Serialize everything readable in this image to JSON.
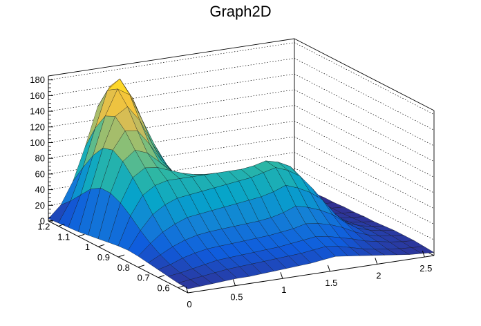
{
  "chart_data": {
    "type": "surface",
    "title": "Graph2D",
    "xlabel": "",
    "ylabel": "",
    "zlabel": "",
    "xlim": [
      0,
      2.6
    ],
    "ylim": [
      0.55,
      1.25
    ],
    "zlim": [
      0,
      185
    ],
    "x_ticks": [
      0,
      0.5,
      1,
      1.5,
      2,
      2.5
    ],
    "x_tick_labels": [
      "0",
      "0.5",
      "1",
      "1.5",
      "2",
      "2.5"
    ],
    "y_ticks": [
      0.6,
      0.7,
      0.8,
      0.9,
      1.0,
      1.1,
      1.2
    ],
    "y_tick_labels": [
      "0.6",
      "0.7",
      "0.8",
      "0.9",
      "1",
      "1.1",
      "1.2"
    ],
    "z_ticks": [
      0,
      20,
      40,
      60,
      80,
      100,
      120,
      140,
      160,
      180
    ],
    "z_tick_labels": [
      "0",
      "20",
      "40",
      "60",
      "80",
      "100",
      "120",
      "140",
      "160",
      "180"
    ],
    "grid": true,
    "colormap": [
      "#352a87",
      "#0f5cdd",
      "#1481d6",
      "#06a4ca",
      "#2eb7a4",
      "#87bf77",
      "#d1bb59",
      "#fec832",
      "#f9fb0e"
    ],
    "surface_x": [
      0.0,
      0.13,
      0.26,
      0.39,
      0.52,
      0.65,
      0.78,
      0.91,
      1.04,
      1.17,
      1.3,
      1.43,
      1.56,
      1.69,
      1.82,
      1.95,
      2.08,
      2.21,
      2.34,
      2.47,
      2.6
    ],
    "surface_y": [
      0.55,
      0.6,
      0.65,
      0.7,
      0.75,
      0.8,
      0.85,
      0.9,
      0.95,
      1.0,
      1.05,
      1.1,
      1.15,
      1.2,
      1.25
    ],
    "surface_z": [
      [
        5,
        6,
        7,
        8,
        9,
        9,
        10,
        11,
        12,
        13,
        14,
        16,
        18,
        16,
        14,
        12,
        10,
        8,
        6,
        5,
        4
      ],
      [
        6,
        8,
        10,
        12,
        14,
        15,
        16,
        17,
        18,
        19,
        20,
        22,
        24,
        22,
        18,
        14,
        11,
        9,
        7,
        6,
        5
      ],
      [
        8,
        10,
        13,
        16,
        19,
        20,
        21,
        22,
        23,
        24,
        26,
        28,
        30,
        28,
        24,
        20,
        15,
        12,
        9,
        7,
        6
      ],
      [
        10,
        14,
        20,
        24,
        27,
        28,
        29,
        30,
        31,
        32,
        34,
        36,
        40,
        38,
        34,
        28,
        20,
        14,
        10,
        8,
        6
      ],
      [
        12,
        20,
        28,
        34,
        38,
        40,
        41,
        42,
        43,
        44,
        46,
        50,
        56,
        52,
        46,
        38,
        26,
        16,
        11,
        8,
        6
      ],
      [
        14,
        28,
        40,
        48,
        54,
        56,
        58,
        60,
        62,
        64,
        66,
        70,
        76,
        70,
        62,
        50,
        30,
        16,
        10,
        7,
        5
      ],
      [
        15,
        38,
        56,
        66,
        72,
        74,
        76,
        78,
        80,
        82,
        84,
        88,
        92,
        86,
        76,
        58,
        30,
        14,
        8,
        6,
        4
      ],
      [
        14,
        50,
        74,
        84,
        88,
        88,
        88,
        88,
        88,
        88,
        88,
        90,
        94,
        90,
        82,
        62,
        28,
        12,
        7,
        5,
        4
      ],
      [
        12,
        60,
        90,
        100,
        98,
        92,
        86,
        82,
        80,
        78,
        76,
        76,
        80,
        84,
        80,
        64,
        26,
        10,
        6,
        4,
        3
      ],
      [
        10,
        66,
        104,
        116,
        110,
        96,
        82,
        72,
        66,
        62,
        58,
        56,
        60,
        70,
        74,
        64,
        24,
        8,
        5,
        4,
        3
      ],
      [
        8,
        66,
        112,
        134,
        132,
        112,
        88,
        70,
        58,
        50,
        44,
        40,
        42,
        54,
        62,
        58,
        22,
        7,
        4,
        3,
        2
      ],
      [
        6,
        58,
        108,
        146,
        156,
        136,
        104,
        78,
        58,
        44,
        34,
        28,
        28,
        36,
        46,
        46,
        18,
        6,
        3,
        2,
        2
      ],
      [
        5,
        44,
        92,
        140,
        172,
        162,
        128,
        94,
        66,
        44,
        28,
        18,
        14,
        18,
        26,
        28,
        12,
        4,
        2,
        2,
        1
      ],
      [
        4,
        30,
        70,
        118,
        164,
        176,
        150,
        112,
        76,
        46,
        24,
        12,
        6,
        6,
        8,
        10,
        6,
        3,
        2,
        1,
        1
      ],
      [
        3,
        18,
        46,
        88,
        136,
        160,
        152,
        118,
        80,
        46,
        20,
        8,
        3,
        2,
        2,
        3,
        2,
        1,
        1,
        1,
        0
      ]
    ]
  }
}
